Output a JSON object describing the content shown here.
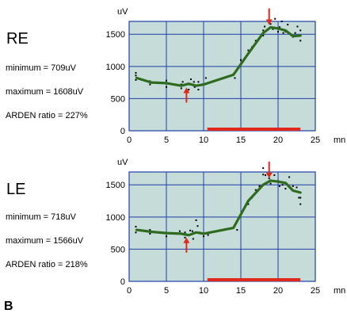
{
  "figure_label": "B",
  "panels": [
    {
      "eye": "RE",
      "minimum": "minimum = 709uV",
      "maximum": "maximum = 1608uV",
      "arden": "ARDEN ratio = 227%"
    },
    {
      "eye": "LE",
      "minimum": "minimum = 718uV",
      "maximum": "maximum = 1566uV",
      "arden": "ARDEN ratio = 218%"
    }
  ],
  "colors": {
    "plot_bg": "#c5dcd8",
    "grid": "#1f3fa8",
    "line": "#2f6b1f",
    "points": "#000000",
    "arrow": "#e0281c",
    "bar": "#e0281c"
  },
  "chart_data": [
    {
      "type": "line",
      "ylabel": "uV",
      "xlabel": "mn",
      "xlim": [
        0,
        25
      ],
      "ylim": [
        0,
        1500
      ],
      "xticks": [
        0,
        5,
        10,
        15,
        20,
        25
      ],
      "yticks": [
        0,
        500,
        1000,
        1500
      ],
      "grid": true,
      "series": [
        {
          "values_x": [
            1,
            3,
            5,
            7,
            8,
            9,
            10,
            14,
            16,
            18,
            19,
            20,
            21,
            22,
            23
          ],
          "values_y": [
            820,
            750,
            740,
            700,
            730,
            700,
            720,
            870,
            1200,
            1520,
            1608,
            1590,
            1560,
            1470,
            1480
          ]
        }
      ],
      "scatter_x": [
        0.9,
        0.9,
        0.9,
        2.8,
        2.8,
        5,
        5,
        7,
        7,
        7.2,
        8,
        8,
        8.3,
        8.7,
        8.8,
        9.3,
        9.3,
        10.2,
        10.3,
        14,
        14.2,
        15,
        16,
        16.5,
        17,
        18,
        18,
        18.2,
        18.8,
        19,
        19.3,
        19.6,
        20,
        20.2,
        20.5,
        20.7,
        21,
        21.3,
        22,
        22.3,
        22.6,
        23,
        23
      ],
      "scatter_y": [
        790,
        860,
        900,
        770,
        720,
        780,
        680,
        660,
        720,
        760,
        640,
        720,
        800,
        760,
        680,
        640,
        760,
        720,
        820,
        880,
        820,
        1100,
        1250,
        1300,
        1400,
        1480,
        1560,
        1620,
        1700,
        1660,
        1580,
        1740,
        1540,
        1610,
        1700,
        1520,
        1540,
        1650,
        1460,
        1520,
        1620,
        1400,
        1560
      ],
      "min_arrow": {
        "x": 7.7,
        "y": 709
      },
      "max_arrow": {
        "x": 18.8,
        "y": 1608
      },
      "bar": {
        "x0": 10.5,
        "x1": 23
      }
    },
    {
      "type": "line",
      "ylabel": "uV",
      "xlabel": "mn",
      "xlim": [
        0,
        25
      ],
      "ylim": [
        0,
        1500
      ],
      "xticks": [
        0,
        5,
        10,
        15,
        20,
        25
      ],
      "yticks": [
        0,
        500,
        1000,
        1500
      ],
      "grid": true,
      "series": [
        {
          "values_x": [
            1,
            3,
            5,
            7,
            8,
            9,
            10,
            14,
            16,
            18,
            19,
            20,
            21,
            22,
            23
          ],
          "values_y": [
            800,
            770,
            750,
            740,
            718,
            760,
            740,
            830,
            1250,
            1500,
            1566,
            1550,
            1530,
            1410,
            1380
          ]
        }
      ],
      "scatter_x": [
        0.9,
        0.9,
        2.8,
        2.8,
        5,
        5,
        6.8,
        7.5,
        7.5,
        7.8,
        8.2,
        8.5,
        8.6,
        9,
        9.2,
        9.5,
        10,
        10.6,
        14.5,
        16,
        16.5,
        17,
        17.5,
        18,
        18,
        18.3,
        18.8,
        19,
        19.5,
        20,
        20.2,
        20.6,
        21,
        21.5,
        22,
        22.5,
        22.8,
        23,
        23
      ],
      "scatter_y": [
        850,
        760,
        800,
        740,
        750,
        700,
        780,
        680,
        760,
        720,
        790,
        780,
        660,
        950,
        860,
        760,
        700,
        720,
        800,
        1200,
        1300,
        1420,
        1480,
        1660,
        1760,
        1650,
        1600,
        1520,
        1650,
        1560,
        1480,
        1500,
        1440,
        1620,
        1480,
        1460,
        1300,
        1300,
        1200
      ],
      "min_arrow": {
        "x": 7.7,
        "y": 718
      },
      "max_arrow": {
        "x": 18.8,
        "y": 1566
      },
      "bar": {
        "x0": 10.5,
        "x1": 23
      }
    }
  ]
}
